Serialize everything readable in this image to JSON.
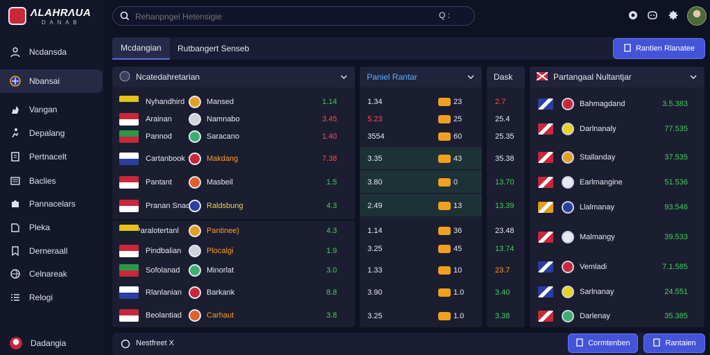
{
  "app": {
    "title": "ΛLAHRΛUA",
    "subtitle": "D A N A B"
  },
  "sidebar": {
    "items": [
      {
        "label": "Ncdansda",
        "icon": "person-icon"
      },
      {
        "label": "Nbansai",
        "icon": "target-icon"
      },
      {
        "label": "Vangan",
        "icon": "hand-icon"
      },
      {
        "label": "Depalang",
        "icon": "person-run-icon"
      },
      {
        "label": "Pertnacelt",
        "icon": "document-icon"
      },
      {
        "label": "Baclies",
        "icon": "list-icon"
      },
      {
        "label": "Pannacelars",
        "icon": "puzzle-icon"
      },
      {
        "label": "Pleka",
        "icon": "note-icon"
      },
      {
        "label": "Derneraall",
        "icon": "bookmark-icon"
      },
      {
        "label": "Celnareak",
        "icon": "globe-icon"
      },
      {
        "label": "Relogi",
        "icon": "list-icon"
      }
    ],
    "footer_label": "Dadangia"
  },
  "search": {
    "placeholder": "Rehanpngel Hetensigie",
    "right_text": "Q :"
  },
  "tabs": [
    {
      "label": "Mcdangian"
    },
    {
      "label": "Rutbangert Senseb"
    }
  ],
  "top_button": "Rantien Rlanatee",
  "panels": {
    "left_title": "Ncatedahretarian",
    "mid_title": "Paniel Rantar",
    "mid2_title": "Dask",
    "right_title": "Partangaal Nultantjar"
  },
  "matches_a": [
    {
      "home": "Nyhandhird",
      "away": "Mansed",
      "val": "1.14",
      "color": "#3fd158"
    },
    {
      "home": "Arainan",
      "away": "Namnabo",
      "val": "3.45",
      "color": "#ff4b4b"
    },
    {
      "home": "Pannod",
      "away": "Saracano",
      "val": "1.40",
      "color": "#ff4b4b"
    },
    {
      "home": "Cartanbook",
      "away": "Makdang",
      "val": "7.38",
      "color": "#ff4b4b",
      "away_color": "#ff9a2a"
    },
    {
      "home": "Pantant",
      "away": "Masbeil",
      "val": "1.5",
      "color": "#3fd158"
    },
    {
      "home": "Pranan Snaoa",
      "away": "Raldsbung",
      "val": "4.3",
      "color": "#3fd158",
      "away_color": "#e9d44a"
    }
  ],
  "matches_b_header": "Pioi Paralotertanl",
  "matches_b": [
    {
      "home": "",
      "away": "Pantinee)",
      "val": "4.3",
      "color": "#3fd158",
      "away_color": "#ff9a2a"
    },
    {
      "home": "Pindbalian",
      "away": "Plocalgi",
      "val": "1.9",
      "color": "#3fd158",
      "away_color": "#ff9a2a"
    },
    {
      "home": "Sofolanad",
      "away": "Minorlat",
      "val": "3.0",
      "color": "#3fd158"
    },
    {
      "home": "Rlanlanian",
      "away": "Barkank",
      "val": "8.8",
      "color": "#3fd158"
    },
    {
      "home": "Beolantiad",
      "away": "Carhaut",
      "val": "3.8",
      "color": "#3fd158",
      "away_color": "#ff9a2a"
    }
  ],
  "mid_rows": [
    {
      "a": "1.34",
      "b": "23",
      "c": "2.7",
      "c_color": "#ff4b4b"
    },
    {
      "a": "5.23",
      "b": "25",
      "c": "25.4",
      "c_color": "#e6e8f2",
      "a_color": "#ff4b4b"
    },
    {
      "a": "3554",
      "b": "60",
      "c": "25.35",
      "c_color": "#e6e8f2"
    },
    {
      "a": "3.35",
      "b": "43",
      "c": "35.38",
      "c_color": "#e6e8f2"
    },
    {
      "a": "3.80",
      "b": "0",
      "c": "13.70",
      "c_color": "#3fd158"
    },
    {
      "a": "2.49",
      "b": "13",
      "c": "13.39",
      "c_color": "#3fd158"
    },
    {
      "a": "1.14",
      "b": "36",
      "c": "23.48",
      "c_color": "#e6e8f2"
    },
    {
      "a": "3.25",
      "b": "45",
      "c": "13.74",
      "c_color": "#3fd158"
    },
    {
      "a": "1.33",
      "b": "10",
      "c": "23.7",
      "c_color": "#ff9a2a"
    },
    {
      "a": "3.90",
      "b": "1.0",
      "c": "3.40",
      "c_color": "#3fd158"
    },
    {
      "a": "3.25",
      "b": "1.0",
      "c": "3.38",
      "c_color": "#3fd158"
    }
  ],
  "right_rows": [
    {
      "team": "Bahmagdand",
      "val": "3.5.383"
    },
    {
      "team": "Darlnanaly",
      "val": "77.535"
    },
    {
      "team": "Stallanday",
      "val": "37.535"
    },
    {
      "team": "Earlmangine",
      "val": "51.536"
    },
    {
      "team": "Llalmanay",
      "val": "93.546"
    },
    {
      "team": "Malmangy",
      "val": "39.533"
    },
    {
      "team": "Vemladi",
      "val": "7.1.585"
    },
    {
      "team": "Sarlnanay",
      "val": "24.551"
    },
    {
      "team": "Darlenay",
      "val": "35.385"
    }
  ],
  "bottom": {
    "left_label": "Nestfreet X",
    "btn1": "Cormtenben",
    "btn2": "Rantaien"
  },
  "colors": {
    "accent": "#4354d8",
    "green": "#3fd158",
    "red": "#ff4b4b",
    "orange": "#ff9a2a"
  }
}
